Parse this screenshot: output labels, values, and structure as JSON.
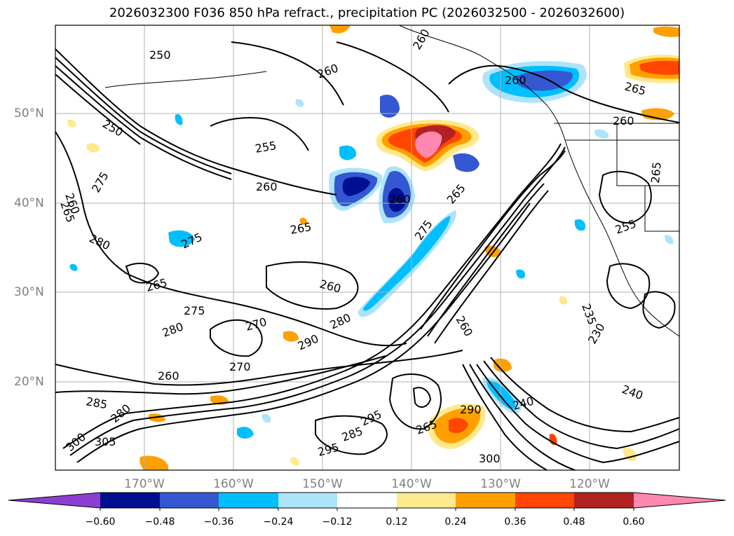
{
  "title": "2026032300 F036 850 hPa refract., precipitation PC (2026032500 - 2026032600)",
  "lat_labels": [
    "50°N",
    "40°N",
    "30°N",
    "20°N"
  ],
  "lon_labels": [
    "170°W",
    "160°W",
    "150°W",
    "140°W",
    "130°W",
    "120°W"
  ],
  "colorbar": {
    "colors": [
      "#8b3fd1",
      "#000f8f",
      "#3358d1",
      "#00bfff",
      "#aee4fb",
      "#ffffff",
      "#ffe98a",
      "#ffa000",
      "#ff4500",
      "#b22222",
      "#ff88b0"
    ],
    "ticks": [
      "−0.60",
      "−0.48",
      "−0.36",
      "−0.24",
      "−0.12",
      "0.12",
      "0.24",
      "0.36",
      "0.48",
      "0.60"
    ]
  },
  "contour_labels": [
    "250",
    "260",
    "265",
    "255",
    "260",
    "260",
    "250",
    "275",
    "265",
    "280",
    "275",
    "265",
    "275",
    "280",
    "270",
    "260",
    "290",
    "280",
    "260",
    "270",
    "260",
    "285",
    "280",
    "305",
    "300",
    "295",
    "285",
    "295",
    "265",
    "275",
    "290",
    "300",
    "260",
    "240",
    "240",
    "235",
    "230",
    "265",
    "260",
    "265",
    "260",
    "255",
    "265",
    "260"
  ],
  "icons": {
    "colorbar_min_arrow": "triangle-left",
    "colorbar_max_arrow": "triangle-right"
  }
}
